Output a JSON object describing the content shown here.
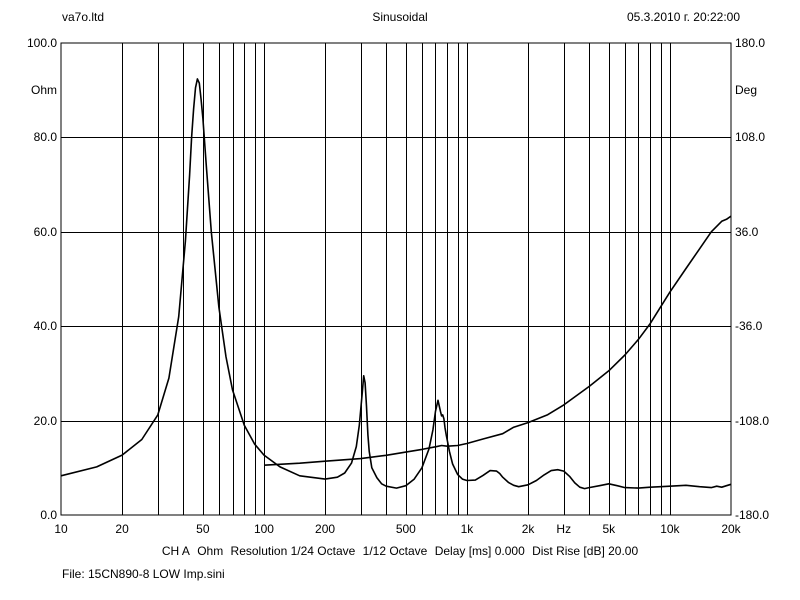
{
  "header": {
    "left": "va7o.ltd",
    "center": "Sinusoidal",
    "right": "05.3.2010 г. 20:22:00"
  },
  "status_line": {
    "channel": "CH A",
    "unit": "Ohm",
    "resolution": "Resolution 1/24 Octave",
    "smoothing": "1/12 Octave",
    "delay": "Delay [ms] 0.000",
    "dist_rise": "Dist Rise [dB] 20.00"
  },
  "file_label": "File: 15CN890-8 LOW Imp.sini",
  "chart_data": {
    "type": "line",
    "x_scale": "log",
    "xlim": [
      10,
      20000
    ],
    "ylim": [
      0,
      100
    ],
    "y2lim": [
      -180,
      180
    ],
    "grid": true,
    "x_ticks": [
      {
        "value": 10,
        "label": "10"
      },
      {
        "value": 20,
        "label": "20"
      },
      {
        "value": 50,
        "label": "50"
      },
      {
        "value": 100,
        "label": "100"
      },
      {
        "value": 200,
        "label": "200"
      },
      {
        "value": 500,
        "label": "500"
      },
      {
        "value": 1000,
        "label": "1k"
      },
      {
        "value": 2000,
        "label": "2k"
      },
      {
        "value": 5000,
        "label": "5k"
      },
      {
        "value": 10000,
        "label": "10k"
      },
      {
        "value": 20000,
        "label": "20k"
      }
    ],
    "x_unit_label": "Hz",
    "x_unit_value": 3000,
    "y_ticks": [
      {
        "value": 100,
        "label": "100.0"
      },
      {
        "value": 80,
        "label": "80.0"
      },
      {
        "value": 60,
        "label": "60.0"
      },
      {
        "value": 40,
        "label": "40.0"
      },
      {
        "value": 20,
        "label": "20.0"
      },
      {
        "value": 0,
        "label": "0.0"
      }
    ],
    "y_unit_label": "Ohm",
    "y_unit_value": 90,
    "y2_ticks": [
      {
        "value": 180,
        "label": "180.0"
      },
      {
        "value": 108,
        "label": "108.0"
      },
      {
        "value": 36,
        "label": "36.0"
      },
      {
        "value": -36,
        "label": "-36.0"
      },
      {
        "value": -108,
        "label": "-108.0"
      },
      {
        "value": -180,
        "label": "-180.0"
      }
    ],
    "y2_unit_label": "Deg",
    "y2_unit_value": 144,
    "series": [
      {
        "axis": "y",
        "color": "#000000",
        "x": [
          10,
          15,
          20,
          25,
          30,
          34,
          38,
          41,
          43,
          44,
          45,
          46,
          47,
          48,
          49,
          50,
          52,
          55,
          60,
          65,
          70,
          80,
          90,
          100,
          120,
          150,
          200,
          230,
          250,
          270,
          285,
          295,
          305,
          310,
          315,
          320,
          325,
          330,
          340,
          360,
          380,
          400,
          450,
          500,
          550,
          600,
          650,
          680,
          700,
          720,
          740,
          750,
          760,
          770,
          780,
          790,
          800,
          820,
          850,
          900,
          950,
          1000,
          1100,
          1200,
          1300,
          1400,
          1450,
          1500,
          1600,
          1700,
          1800,
          2000,
          2200,
          2400,
          2600,
          2800,
          3000,
          3200,
          3400,
          3600,
          3800,
          4000,
          4500,
          5000,
          5500,
          6000,
          7000,
          8000,
          9000,
          10000,
          12000,
          14000,
          16000,
          17000,
          18000,
          19000,
          20000
        ],
        "y": [
          8.3,
          10.2,
          12.7,
          16.0,
          21.2,
          29.0,
          42.0,
          58.0,
          72.0,
          80.0,
          86.0,
          90.5,
          92.4,
          91.5,
          88.0,
          84.0,
          74.0,
          60.0,
          44.0,
          33.5,
          26.5,
          19.0,
          15.0,
          12.7,
          10.2,
          8.3,
          7.6,
          8.0,
          8.9,
          11.0,
          14.5,
          19.0,
          26.0,
          29.5,
          28.0,
          23.0,
          17.0,
          13.5,
          10.0,
          7.9,
          6.6,
          6.1,
          5.7,
          6.2,
          7.6,
          10.0,
          14.0,
          18.0,
          22.0,
          24.3,
          22.0,
          21.0,
          21.2,
          20.4,
          18.5,
          17.0,
          15.8,
          13.5,
          10.8,
          8.6,
          7.6,
          7.3,
          7.4,
          8.4,
          9.4,
          9.3,
          8.8,
          8.0,
          6.9,
          6.3,
          6.0,
          6.4,
          7.3,
          8.5,
          9.4,
          9.6,
          9.3,
          8.2,
          6.8,
          5.9,
          5.6,
          5.8,
          6.2,
          6.6,
          6.2,
          5.8,
          5.7,
          5.9,
          6.0,
          6.1,
          6.3,
          6.0,
          5.8,
          6.1,
          5.9,
          6.2,
          6.5
        ]
      },
      {
        "axis": "y2",
        "color": "#000000",
        "x": [
          100,
          150,
          200,
          300,
          400,
          500,
          600,
          700,
          750,
          800,
          900,
          1000,
          1200,
          1500,
          1700,
          2000,
          2500,
          3000,
          4000,
          5000,
          6000,
          7000,
          8000,
          10000,
          12000,
          14000,
          16000,
          18000,
          19000,
          20000
        ],
        "y": [
          -142.0,
          -140.5,
          -139.0,
          -137.0,
          -134.5,
          -132.0,
          -130.0,
          -128.0,
          -127.0,
          -127.5,
          -127.0,
          -125.5,
          -122.0,
          -118.0,
          -113.0,
          -109.5,
          -103.5,
          -96.0,
          -82.0,
          -70.0,
          -58.0,
          -46.0,
          -34.0,
          -10.0,
          8.0,
          23.0,
          36.0,
          44.0,
          45.5,
          48.0
        ]
      }
    ]
  }
}
